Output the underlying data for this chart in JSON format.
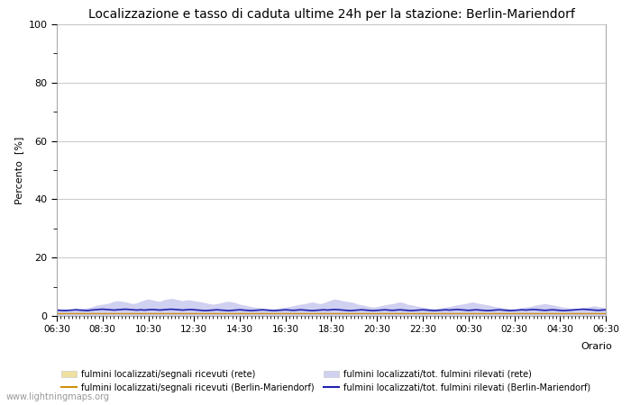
{
  "title": "Localizzazione e tasso di caduta ultime 24h per la stazione: Berlin-Mariendorf",
  "ylabel": "Percento  [%]",
  "xlabel": "Orario",
  "watermark": "www.lightningmaps.org",
  "xtick_labels": [
    "06:30",
    "08:30",
    "10:30",
    "12:30",
    "14:30",
    "16:30",
    "18:30",
    "20:30",
    "22:30",
    "00:30",
    "02:30",
    "04:30",
    "06:30"
  ],
  "ytick_labels": [
    0,
    20,
    40,
    60,
    80,
    100
  ],
  "ytick_minor": [
    10,
    30,
    50,
    70,
    90
  ],
  "ylim": [
    0,
    100
  ],
  "background_color": "#ffffff",
  "plot_bg_color": "#ffffff",
  "grid_color": "#c8c8c8",
  "fill_rete_segnali_color": "#f0e0a0",
  "fill_rete_tot_color": "#d0d0f0",
  "line_station_segnali_color": "#d0900a",
  "line_station_tot_color": "#2020b0",
  "legend_row1": [
    {
      "label": "fulmini localizzati/segnali ricevuti (rete)",
      "type": "fill",
      "color": "#f0e0a0"
    },
    {
      "label": "fulmini localizzati/segnali ricevuti (Berlin-Mariendorf)",
      "type": "line",
      "color": "#d0900a"
    }
  ],
  "legend_row2": [
    {
      "label": "fulmini localizzati/tot. fulmini rilevati (rete)",
      "type": "fill",
      "color": "#d0d0f0"
    },
    {
      "label": "fulmini localizzati/tot. fulmini rilevati (Berlin-Mariendorf)",
      "type": "line",
      "color": "#2020b0"
    }
  ],
  "n_points": 145,
  "rete_segnali_values": [
    1.2,
    1.1,
    1.1,
    1.0,
    1.2,
    1.1,
    1.0,
    1.1,
    1.2,
    1.1,
    1.0,
    1.0,
    1.1,
    1.0,
    0.9,
    1.0,
    1.0,
    1.1,
    1.0,
    1.0,
    1.1,
    1.2,
    1.1,
    1.1,
    1.0,
    1.0,
    1.1,
    1.1,
    1.0,
    1.1,
    1.2,
    1.1,
    1.0,
    1.1,
    1.2,
    1.1,
    1.0,
    1.0,
    1.1,
    1.1,
    1.0,
    1.1,
    1.2,
    1.1,
    1.0,
    1.0,
    1.1,
    1.1,
    1.2,
    1.1,
    1.0,
    1.0,
    1.1,
    1.1,
    1.0,
    1.0,
    1.1,
    1.1,
    1.2,
    1.1,
    1.0,
    1.1,
    1.2,
    1.1,
    1.0,
    1.0,
    1.1,
    1.1,
    1.0,
    1.0,
    1.1,
    1.1,
    1.2,
    1.1,
    1.0,
    1.0,
    1.1,
    1.1,
    1.2,
    1.1,
    1.0,
    1.0,
    1.1,
    1.1,
    1.0,
    1.0,
    1.1,
    1.1,
    1.2,
    1.1,
    1.0,
    1.1,
    1.2,
    1.1,
    1.0,
    1.0,
    1.1,
    1.1,
    1.0,
    1.0,
    1.1,
    1.1,
    1.2,
    1.1,
    1.0,
    1.0,
    1.1,
    1.1,
    1.2,
    1.1,
    1.0,
    1.0,
    1.1,
    1.1,
    1.0,
    1.0,
    1.1,
    1.1,
    1.2,
    1.1,
    1.0,
    1.1,
    1.2,
    1.1,
    1.0,
    1.0,
    1.1,
    1.1,
    1.0,
    1.0,
    1.1,
    1.1,
    1.2,
    1.1,
    1.0,
    1.0,
    1.1,
    1.1,
    1.2,
    1.1,
    1.0,
    1.0,
    1.1,
    1.1,
    1.0
  ],
  "rete_tot_values": [
    2.5,
    2.3,
    2.4,
    2.2,
    2.3,
    2.4,
    2.5,
    2.6,
    2.8,
    3.0,
    3.5,
    3.8,
    4.0,
    4.2,
    4.5,
    5.0,
    5.2,
    5.0,
    4.8,
    4.5,
    4.2,
    4.5,
    5.0,
    5.5,
    5.8,
    5.5,
    5.2,
    5.0,
    5.5,
    5.8,
    6.0,
    5.8,
    5.5,
    5.2,
    5.5,
    5.5,
    5.2,
    5.0,
    4.8,
    4.5,
    4.2,
    4.0,
    4.2,
    4.5,
    4.8,
    5.0,
    4.8,
    4.5,
    4.0,
    3.8,
    3.5,
    3.2,
    3.0,
    2.8,
    2.6,
    2.5,
    2.4,
    2.5,
    2.6,
    2.8,
    3.0,
    3.2,
    3.5,
    3.8,
    4.0,
    4.2,
    4.5,
    4.8,
    4.5,
    4.2,
    4.5,
    5.0,
    5.5,
    5.8,
    5.5,
    5.2,
    5.0,
    4.8,
    4.5,
    4.0,
    3.8,
    3.5,
    3.2,
    3.0,
    3.2,
    3.5,
    3.8,
    4.0,
    4.2,
    4.5,
    4.8,
    4.5,
    4.0,
    3.8,
    3.5,
    3.2,
    3.0,
    2.8,
    2.6,
    2.5,
    2.6,
    2.8,
    3.0,
    3.2,
    3.5,
    3.8,
    4.0,
    4.2,
    4.5,
    4.8,
    4.5,
    4.2,
    4.0,
    3.8,
    3.5,
    3.2,
    3.0,
    2.8,
    2.6,
    2.5,
    2.4,
    2.5,
    2.8,
    3.0,
    3.2,
    3.5,
    3.8,
    4.0,
    4.2,
    4.0,
    3.8,
    3.5,
    3.2,
    3.0,
    2.8,
    2.6,
    2.5,
    2.6,
    2.8,
    3.0,
    3.2,
    3.5,
    3.2,
    3.0,
    2.8
  ],
  "station_segnali_values": [
    1.0,
    1.0,
    1.0,
    1.0,
    1.0,
    1.0,
    1.0,
    1.0,
    1.0,
    1.0,
    1.0,
    1.0,
    1.0,
    1.0,
    1.0,
    1.0,
    1.0,
    1.0,
    1.0,
    1.0,
    1.0,
    1.0,
    1.0,
    1.0,
    1.0,
    1.0,
    1.0,
    1.0,
    1.0,
    1.0,
    1.0,
    1.0,
    1.0,
    1.0,
    1.0,
    1.0,
    1.0,
    1.0,
    1.0,
    1.0,
    1.0,
    1.0,
    1.0,
    1.0,
    1.0,
    1.0,
    1.0,
    1.0,
    1.0,
    1.0,
    1.0,
    1.0,
    1.0,
    1.0,
    1.0,
    1.0,
    1.0,
    1.0,
    1.0,
    1.0,
    1.0,
    1.0,
    1.0,
    1.0,
    1.0,
    1.0,
    1.0,
    1.0,
    1.0,
    1.0,
    1.0,
    1.0,
    1.0,
    1.0,
    1.0,
    1.0,
    1.0,
    1.0,
    1.0,
    1.0,
    1.0,
    1.0,
    1.0,
    1.0,
    1.0,
    1.0,
    1.0,
    1.0,
    1.0,
    1.0,
    1.0,
    1.0,
    1.0,
    1.0,
    1.0,
    1.0,
    1.0,
    1.0,
    1.0,
    1.0,
    1.0,
    1.0,
    1.0,
    1.0,
    1.0,
    1.0,
    1.0,
    1.0,
    1.0,
    1.0,
    1.0,
    1.0,
    1.0,
    1.0,
    1.0,
    1.0,
    1.0,
    1.0,
    1.0,
    1.0,
    1.0,
    1.0,
    1.0,
    1.0,
    1.0,
    1.0,
    1.0,
    1.0,
    1.0,
    1.0,
    1.0,
    1.0,
    1.0,
    1.0,
    1.0,
    1.0,
    1.0,
    1.0,
    1.0,
    1.0,
    1.0,
    1.0,
    1.0,
    1.0,
    1.0
  ],
  "station_tot_values": [
    2.0,
    1.9,
    1.8,
    1.9,
    2.0,
    2.1,
    2.0,
    1.9,
    1.8,
    2.0,
    2.1,
    2.2,
    2.3,
    2.2,
    2.1,
    2.0,
    2.1,
    2.2,
    2.3,
    2.2,
    2.1,
    2.0,
    2.1,
    2.0,
    2.1,
    2.2,
    2.1,
    2.0,
    2.1,
    2.2,
    2.3,
    2.2,
    2.1,
    2.0,
    2.1,
    2.2,
    2.1,
    2.0,
    1.9,
    1.8,
    1.9,
    2.0,
    2.1,
    2.0,
    1.9,
    1.8,
    1.9,
    2.0,
    2.1,
    2.0,
    1.9,
    1.8,
    1.9,
    2.0,
    2.1,
    2.0,
    1.9,
    1.8,
    1.9,
    2.0,
    2.1,
    2.0,
    1.9,
    2.0,
    2.1,
    2.0,
    1.9,
    1.8,
    1.9,
    2.0,
    2.1,
    2.0,
    2.1,
    2.2,
    2.1,
    2.0,
    1.9,
    1.8,
    1.9,
    2.0,
    2.1,
    2.0,
    1.9,
    1.8,
    1.9,
    2.0,
    2.1,
    2.0,
    1.9,
    2.0,
    2.1,
    2.0,
    1.9,
    1.8,
    1.9,
    2.0,
    2.1,
    2.0,
    1.9,
    1.8,
    1.9,
    2.0,
    2.1,
    2.0,
    2.1,
    2.2,
    2.1,
    2.0,
    1.9,
    2.0,
    2.1,
    2.0,
    1.9,
    1.8,
    1.9,
    2.0,
    2.1,
    2.0,
    1.9,
    1.8,
    1.9,
    2.0,
    2.1,
    2.0,
    2.1,
    2.2,
    2.1,
    2.0,
    1.9,
    2.0,
    2.1,
    2.0,
    1.9,
    1.8,
    1.9,
    2.0,
    2.1,
    2.2,
    2.3,
    2.2,
    2.1,
    2.0,
    1.9,
    2.0,
    2.1
  ]
}
